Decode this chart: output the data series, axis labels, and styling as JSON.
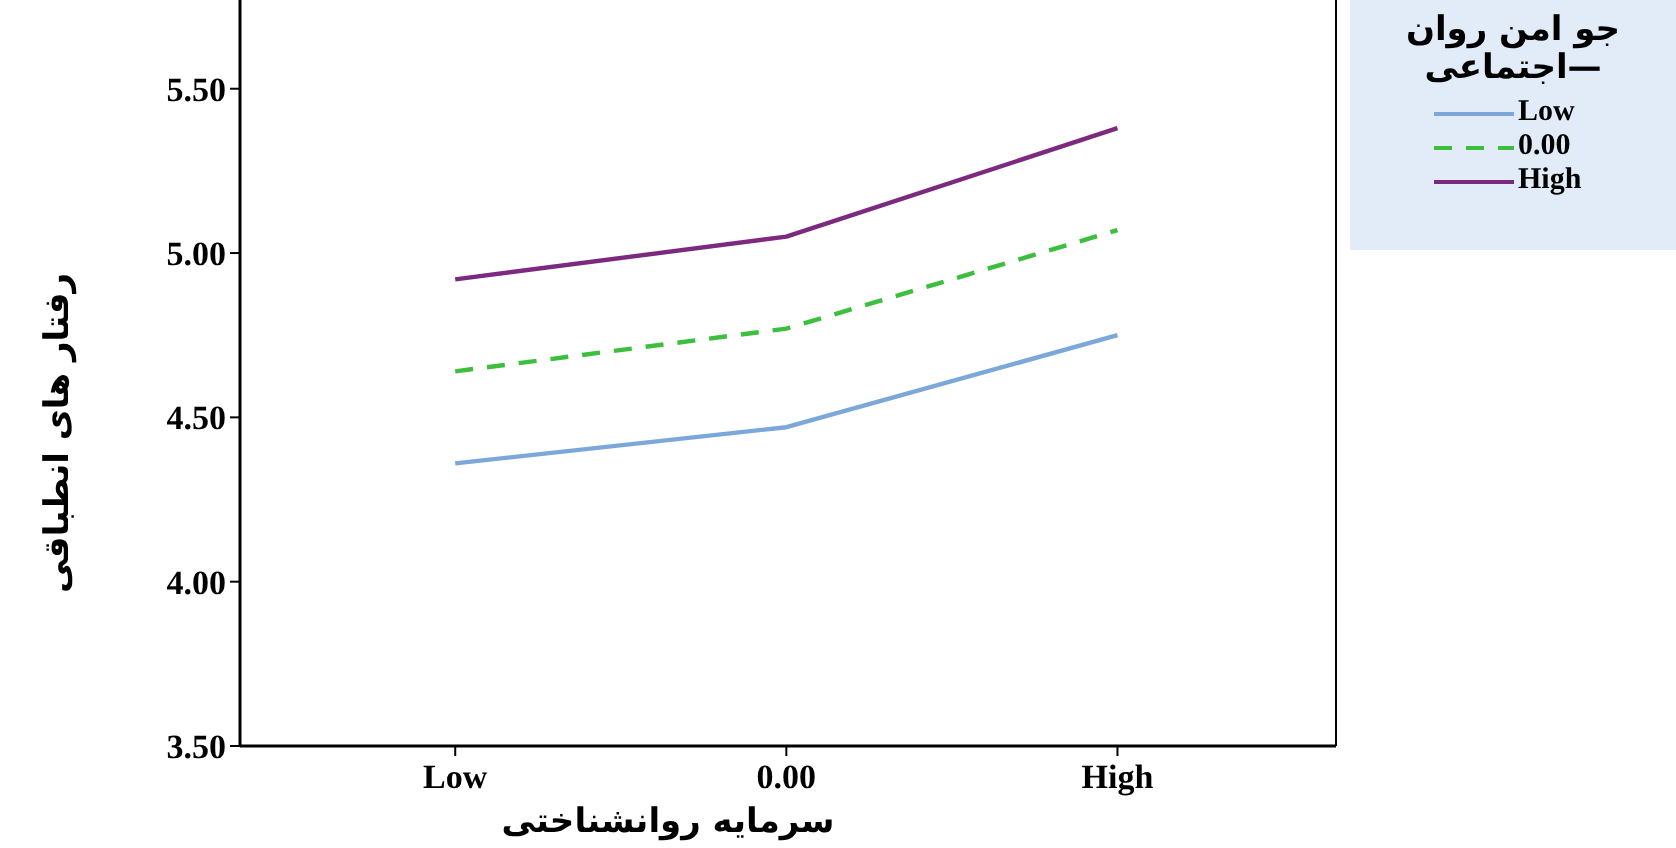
{
  "chart_data": {
    "type": "line",
    "xlabel": "سرمایه روانشناختی",
    "ylabel": "رفتار های انطباقی",
    "legend_title": "جو امن روان—اجتماعی",
    "categories": [
      "Low",
      "0.00",
      "High"
    ],
    "series": [
      {
        "name": "Low",
        "color": "#7ba7d9",
        "line_style": "solid",
        "values": [
          4.36,
          4.47,
          4.75
        ]
      },
      {
        "name": "0.00",
        "color": "#3cbf3c",
        "line_style": "dashed",
        "values": [
          4.64,
          4.77,
          5.07
        ]
      },
      {
        "name": "High",
        "color": "#7b2a7f",
        "line_style": "solid",
        "values": [
          4.92,
          5.05,
          5.38
        ]
      }
    ],
    "ylim": [
      3.5,
      5.77
    ],
    "yticks": [
      {
        "value": 3.5,
        "label": "3.50"
      },
      {
        "value": 4,
        "label": "4.00"
      },
      {
        "value": 4.5,
        "label": "4.50"
      },
      {
        "value": 5,
        "label": "5.00"
      },
      {
        "value": 5.5,
        "label": "5.50"
      }
    ],
    "grid": false,
    "legend": "top right",
    "marker": "none"
  }
}
